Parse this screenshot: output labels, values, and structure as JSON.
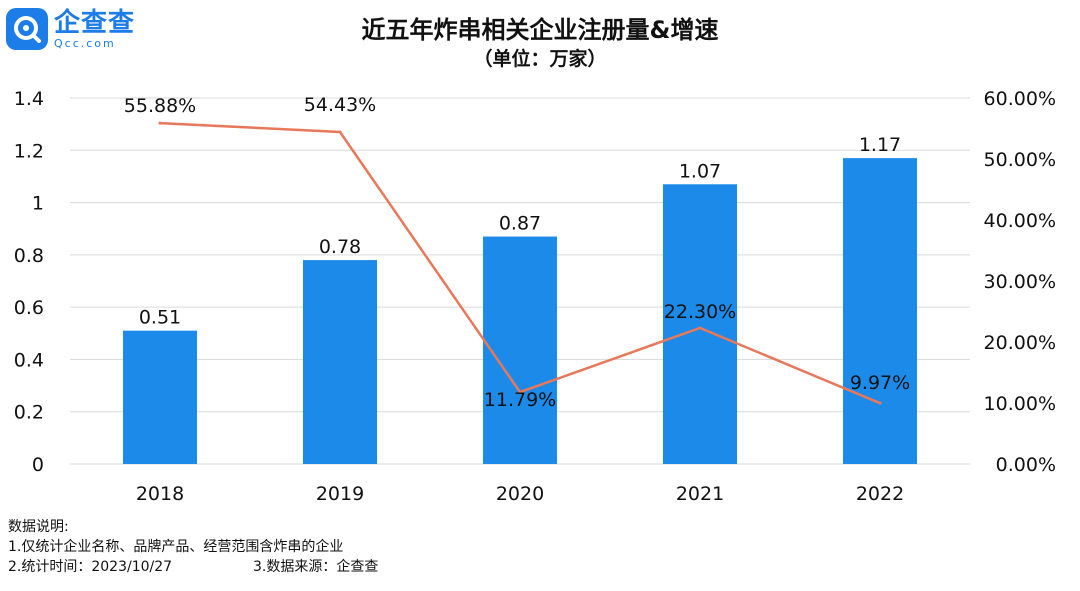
{
  "logo": {
    "name": "企查查",
    "sub": "Qcc.com",
    "icon": "qcc-logo-icon"
  },
  "colors": {
    "bar": "#1c8ae8",
    "line": "#e8785a",
    "grid": "#d9d9d9",
    "brand": "#1c7ce8"
  },
  "chart_data": {
    "type": "bar",
    "title": "近五年炸串相关企业注册量&增速",
    "subtitle": "（单位：万家）",
    "categories": [
      "2018",
      "2019",
      "2020",
      "2021",
      "2022"
    ],
    "series": [
      {
        "type": "bar",
        "axis": "left",
        "values": [
          0.51,
          0.78,
          0.87,
          1.07,
          1.17
        ],
        "labels": [
          "0.51",
          "0.78",
          "0.87",
          "1.07",
          "1.17"
        ]
      },
      {
        "type": "line",
        "axis": "right",
        "values": [
          55.88,
          54.43,
          11.79,
          22.3,
          9.97
        ],
        "labels": [
          "55.88%",
          "54.43%",
          "11.79%",
          "22.30%",
          "9.97%"
        ]
      }
    ],
    "y_left": {
      "ylim": [
        0,
        1.4
      ],
      "ticks": [
        "0",
        "0.2",
        "0.4",
        "0.6",
        "0.8",
        "1",
        "1.2",
        "1.4"
      ]
    },
    "y_right": {
      "ylim": [
        0,
        60
      ],
      "ticks": [
        "0.00%",
        "10.00%",
        "20.00%",
        "30.00%",
        "40.00%",
        "50.00%",
        "60.00%"
      ]
    },
    "grid": true,
    "legend": "none"
  },
  "notes": {
    "heading": "数据说明:",
    "line1": "1.仅统计企业名称、品牌产品、经营范围含炸串的企业",
    "line2a": "2.统计时间：2023/10/27",
    "line2b": "3.数据来源：企查查"
  }
}
